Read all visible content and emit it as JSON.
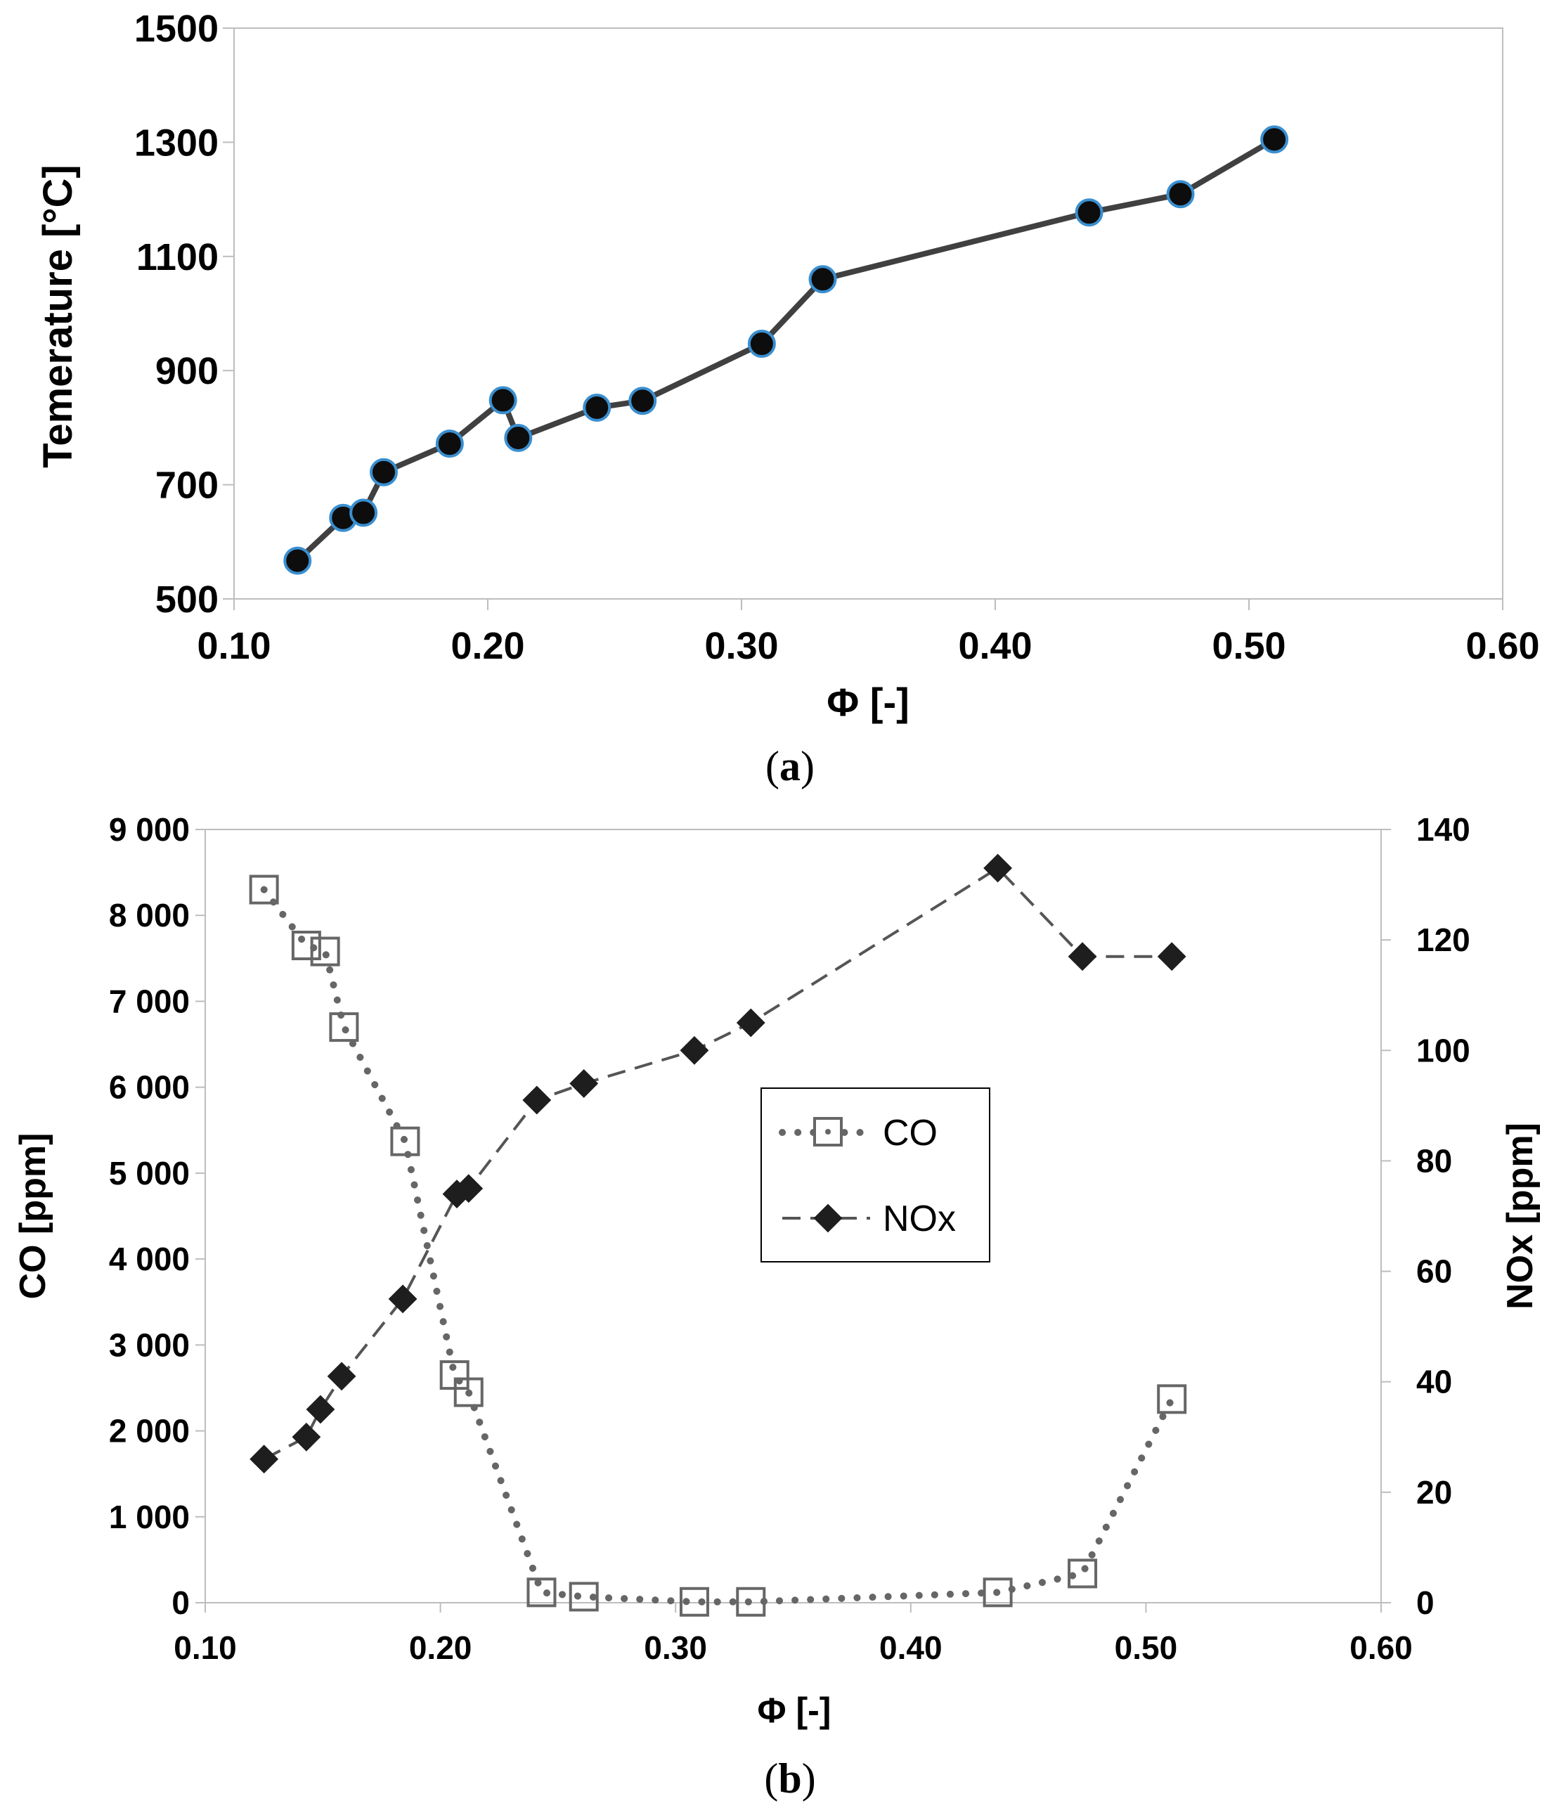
{
  "colors": {
    "line_a": "#404040",
    "marker_a_fill": "#0d0d0d",
    "marker_a_edge": "#3a8fd0",
    "co_color": "#666666",
    "nox_line": "#555555",
    "nox_marker": "#1e1e1e",
    "frame": "#bdbdbd"
  },
  "chart_data": [
    {
      "type": "line",
      "caption_open": "(",
      "caption_letter": "a",
      "caption_close": ")",
      "xlabel": "Φ [-]",
      "ylabel": "Temerature [°C]",
      "xlim": [
        0.1,
        0.6
      ],
      "ylim": [
        500,
        1500
      ],
      "x_ticks": [
        "0.10",
        "0.20",
        "0.30",
        "0.40",
        "0.50",
        "0.60"
      ],
      "y_ticks": [
        "500",
        "700",
        "900",
        "1100",
        "1300",
        "1500"
      ],
      "series": [
        {
          "name": "Temperature",
          "x": [
            0.125,
            0.143,
            0.151,
            0.159,
            0.185,
            0.206,
            0.212,
            0.243,
            0.261,
            0.308,
            0.332,
            0.437,
            0.473,
            0.51
          ],
          "y": [
            567,
            642,
            651,
            722,
            772,
            848,
            782,
            835,
            847,
            947,
            1060,
            1177,
            1209,
            1305
          ]
        }
      ]
    },
    {
      "type": "line",
      "caption_open": "(",
      "caption_letter": "b",
      "caption_close": ")",
      "xlabel": "Φ [-]",
      "ylabel_left": "CO [ppm]",
      "ylabel_right": "NOx [ppm]",
      "xlim": [
        0.1,
        0.6
      ],
      "ylim_left": [
        0,
        9000
      ],
      "ylim_right": [
        0,
        140
      ],
      "x_ticks": [
        "0.10",
        "0.20",
        "0.30",
        "0.40",
        "0.50",
        "0.60"
      ],
      "y_ticks_left": [
        "0",
        "1 000",
        "2 000",
        "3 000",
        "4 000",
        "5 000",
        "6 000",
        "7 000",
        "8 000",
        "9 000"
      ],
      "y_ticks_right": [
        "0",
        "20",
        "40",
        "60",
        "80",
        "100",
        "120",
        "140"
      ],
      "legend_position": "center",
      "series": [
        {
          "name": "CO",
          "axis": "left",
          "x": [
            0.125,
            0.143,
            0.151,
            0.159,
            0.185,
            0.206,
            0.212,
            0.243,
            0.261,
            0.308,
            0.332,
            0.437,
            0.473,
            0.511
          ],
          "y": [
            8300,
            7650,
            7580,
            6700,
            5370,
            2650,
            2450,
            120,
            70,
            10,
            10,
            120,
            340,
            2370
          ]
        },
        {
          "name": "NOx",
          "axis": "right",
          "x": [
            0.125,
            0.143,
            0.149,
            0.158,
            0.184,
            0.207,
            0.212,
            0.241,
            0.261,
            0.308,
            0.332,
            0.437,
            0.473,
            0.511
          ],
          "y": [
            26,
            30,
            35,
            41,
            55,
            74,
            75,
            91,
            94,
            100,
            105,
            133,
            117,
            117
          ]
        }
      ]
    }
  ]
}
